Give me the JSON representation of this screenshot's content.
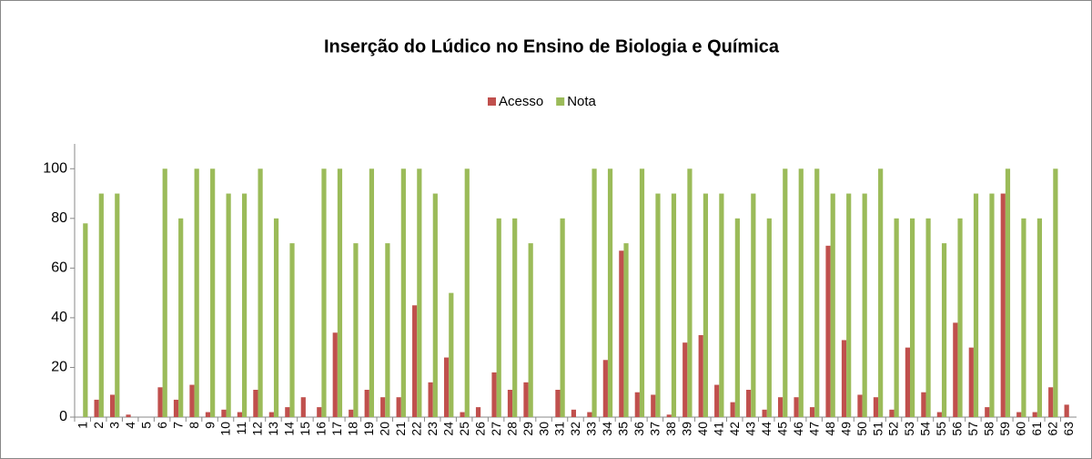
{
  "chart_data": {
    "type": "bar",
    "title": "Inserção do Lúdico no Ensino de Biologia e Química",
    "categories": [
      "1",
      "2",
      "3",
      "4",
      "5",
      "6",
      "7",
      "8",
      "9",
      "10",
      "11",
      "12",
      "13",
      "14",
      "15",
      "16",
      "17",
      "18",
      "19",
      "20",
      "21",
      "22",
      "23",
      "24",
      "25",
      "26",
      "27",
      "28",
      "29",
      "30",
      "31",
      "32",
      "33",
      "34",
      "35",
      "36",
      "37",
      "38",
      "39",
      "40",
      "41",
      "42",
      "43",
      "44",
      "45",
      "46",
      "47",
      "48",
      "49",
      "50",
      "51",
      "52",
      "53",
      "54",
      "55",
      "56",
      "57",
      "58",
      "59",
      "60",
      "61",
      "62",
      "63"
    ],
    "series": [
      {
        "name": "Acesso",
        "color": "#c0504d",
        "values": [
          0,
          7,
          9,
          1,
          0,
          12,
          7,
          13,
          2,
          3,
          2,
          11,
          2,
          4,
          8,
          4,
          34,
          3,
          11,
          8,
          8,
          45,
          14,
          24,
          2,
          4,
          18,
          11,
          14,
          0,
          11,
          3,
          2,
          23,
          67,
          10,
          9,
          1,
          30,
          33,
          13,
          6,
          11,
          3,
          8,
          8,
          4,
          69,
          31,
          9,
          8,
          3,
          28,
          10,
          2,
          38,
          28,
          4,
          90,
          2,
          2,
          12,
          5
        ]
      },
      {
        "name": "Nota",
        "color": "#9bbb59",
        "values": [
          78,
          90,
          90,
          0,
          0,
          100,
          80,
          100,
          100,
          90,
          90,
          100,
          80,
          70,
          0,
          100,
          100,
          70,
          100,
          70,
          100,
          100,
          90,
          50,
          100,
          0,
          80,
          80,
          70,
          0,
          80,
          0,
          100,
          100,
          70,
          100,
          90,
          90,
          100,
          90,
          90,
          80,
          90,
          80,
          100,
          100,
          100,
          90,
          90,
          90,
          100,
          80,
          80,
          80,
          70,
          80,
          90,
          90,
          100,
          80,
          80,
          100,
          0
        ]
      }
    ],
    "ylim": [
      0,
      110
    ],
    "yticks": [
      0,
      20,
      40,
      60,
      80,
      100
    ],
    "grid": false,
    "legend": "top"
  }
}
